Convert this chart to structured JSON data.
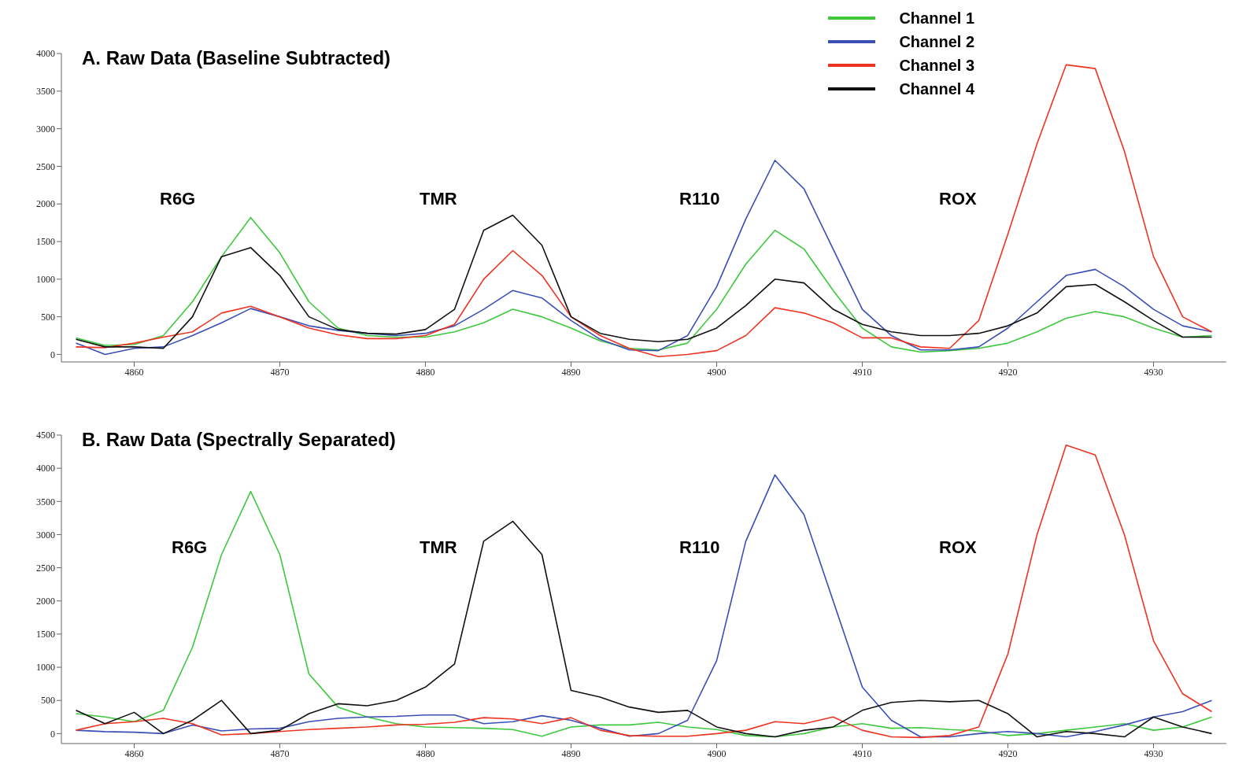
{
  "chart_data": [
    {
      "type": "line",
      "title": "A. Raw Data (Baseline Subtracted)",
      "x": [
        4856,
        4858,
        4860,
        4862,
        4864,
        4866,
        4868,
        4870,
        4872,
        4874,
        4876,
        4878,
        4880,
        4882,
        4884,
        4886,
        4888,
        4890,
        4892,
        4894,
        4896,
        4898,
        4900,
        4902,
        4904,
        4906,
        4908,
        4910,
        4912,
        4914,
        4916,
        4918,
        4920,
        4922,
        4924,
        4926,
        4928,
        4930,
        4932,
        4934
      ],
      "xlim": [
        4855,
        4935
      ],
      "xticks": [
        4860,
        4870,
        4880,
        4890,
        4900,
        4910,
        4920,
        4930
      ],
      "ylim": [
        -100,
        4000
      ],
      "yticks": [
        0,
        500,
        1000,
        1500,
        2000,
        2500,
        3000,
        3500,
        4000
      ],
      "legend": "top right",
      "marker": "none",
      "line_style": "solid",
      "series": [
        {
          "name": "Channel 1",
          "color": "#3ec83e",
          "values": [
            220,
            120,
            130,
            250,
            700,
            1300,
            1820,
            1350,
            700,
            350,
            250,
            230,
            230,
            300,
            420,
            600,
            500,
            350,
            180,
            80,
            60,
            150,
            600,
            1200,
            1650,
            1400,
            850,
            350,
            100,
            30,
            50,
            80,
            150,
            300,
            480,
            570,
            500,
            350,
            230,
            250
          ]
        },
        {
          "name": "Channel 2",
          "color": "#3a4fb5",
          "values": [
            150,
            0,
            80,
            100,
            250,
            420,
            610,
            500,
            380,
            320,
            280,
            250,
            280,
            380,
            600,
            850,
            750,
            450,
            200,
            60,
            50,
            250,
            900,
            1800,
            2580,
            2200,
            1400,
            600,
            250,
            60,
            60,
            100,
            350,
            700,
            1050,
            1130,
            900,
            600,
            380,
            300
          ]
        },
        {
          "name": "Channel 3",
          "color": "#ee3322",
          "values": [
            100,
            90,
            150,
            230,
            300,
            550,
            640,
            500,
            350,
            260,
            210,
            210,
            250,
            400,
            1000,
            1380,
            1050,
            500,
            250,
            80,
            -30,
            0,
            50,
            250,
            620,
            550,
            420,
            220,
            220,
            100,
            80,
            450,
            1600,
            2800,
            3850,
            3800,
            2700,
            1300,
            500,
            300
          ]
        },
        {
          "name": "Channel 4",
          "color": "#111111",
          "values": [
            200,
            100,
            100,
            80,
            500,
            1300,
            1420,
            1050,
            500,
            330,
            280,
            270,
            330,
            600,
            1650,
            1850,
            1450,
            500,
            280,
            200,
            170,
            200,
            350,
            650,
            1000,
            950,
            600,
            400,
            300,
            250,
            250,
            280,
            380,
            550,
            900,
            930,
            700,
            450,
            230,
            230
          ]
        }
      ],
      "annotations": [
        "R6G",
        "TMR",
        "R110",
        "ROX"
      ]
    },
    {
      "type": "line",
      "title": "B. Raw Data (Spectrally Separated)",
      "x": [
        4856,
        4858,
        4860,
        4862,
        4864,
        4866,
        4868,
        4870,
        4872,
        4874,
        4876,
        4878,
        4880,
        4882,
        4884,
        4886,
        4888,
        4890,
        4892,
        4894,
        4896,
        4898,
        4900,
        4902,
        4904,
        4906,
        4908,
        4910,
        4912,
        4914,
        4916,
        4918,
        4920,
        4922,
        4924,
        4926,
        4928,
        4930,
        4932,
        4934
      ],
      "xlim": [
        4855,
        4935
      ],
      "xticks": [
        4860,
        4870,
        4880,
        4890,
        4900,
        4910,
        4920,
        4930
      ],
      "ylim": [
        -150,
        4500
      ],
      "yticks": [
        0,
        500,
        1000,
        1500,
        2000,
        2500,
        3000,
        3500,
        4000,
        4500
      ],
      "marker": "none",
      "line_style": "solid",
      "series": [
        {
          "color": "#3ec83e",
          "values": [
            300,
            250,
            180,
            350,
            1300,
            2700,
            3650,
            2700,
            900,
            400,
            250,
            150,
            100,
            90,
            80,
            60,
            -40,
            100,
            130,
            130,
            170,
            100,
            60,
            -30,
            -50,
            0,
            100,
            150,
            80,
            90,
            60,
            40,
            -30,
            0,
            50,
            100,
            150,
            50,
            100,
            250
          ]
        },
        {
          "color": "#3a4fb5",
          "values": [
            50,
            30,
            20,
            0,
            130,
            40,
            70,
            80,
            180,
            230,
            250,
            260,
            280,
            280,
            150,
            180,
            270,
            200,
            80,
            -40,
            0,
            200,
            1100,
            2900,
            3900,
            3300,
            2000,
            700,
            200,
            -50,
            -50,
            0,
            30,
            0,
            -50,
            30,
            130,
            250,
            330,
            500
          ]
        },
        {
          "color": "#ee3322",
          "values": [
            50,
            150,
            180,
            230,
            150,
            -20,
            0,
            30,
            60,
            80,
            100,
            130,
            140,
            170,
            240,
            220,
            150,
            240,
            50,
            -30,
            -40,
            -40,
            0,
            50,
            180,
            150,
            250,
            50,
            -50,
            -60,
            -30,
            100,
            1200,
            3000,
            4350,
            4200,
            3000,
            1400,
            600,
            330
          ]
        },
        {
          "color": "#111111",
          "values": [
            350,
            150,
            320,
            0,
            200,
            500,
            0,
            50,
            300,
            450,
            420,
            500,
            700,
            1050,
            2900,
            3200,
            2700,
            650,
            550,
            400,
            320,
            350,
            100,
            0,
            -50,
            50,
            100,
            350,
            470,
            500,
            480,
            500,
            300,
            -50,
            30,
            0,
            -50,
            250,
            100,
            0
          ]
        }
      ],
      "annotations": [
        "R6G",
        "TMR",
        "R110",
        "ROX"
      ]
    }
  ]
}
